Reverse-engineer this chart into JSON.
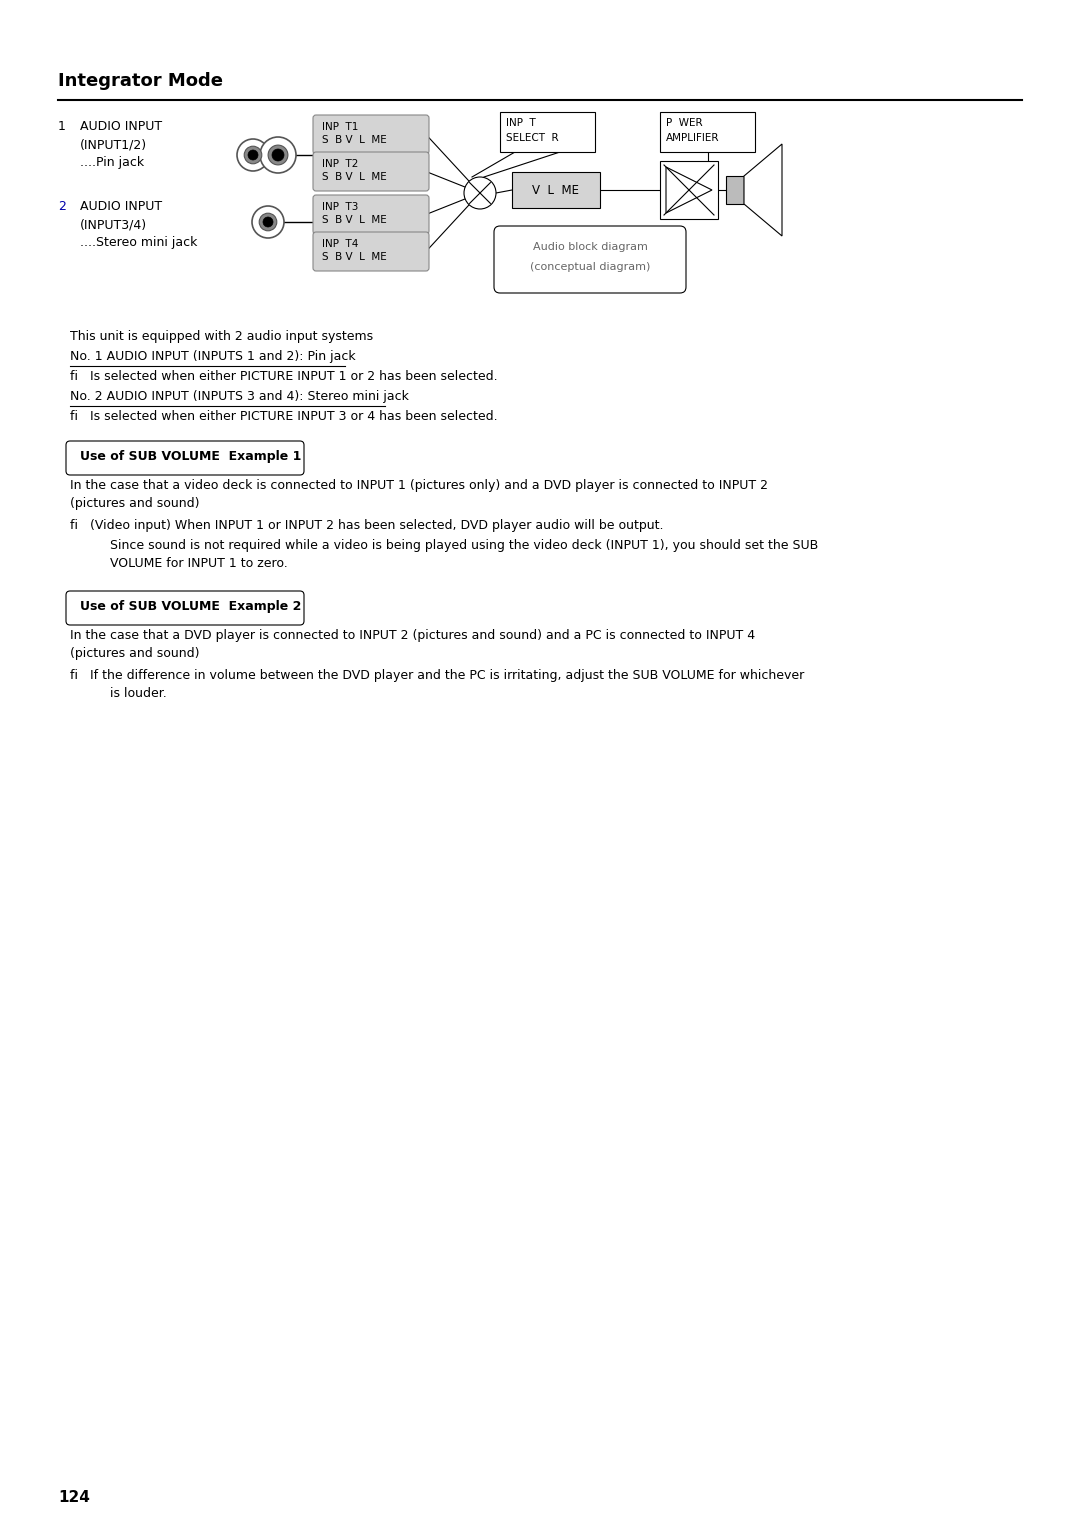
{
  "title": "Integrator Mode",
  "page_number": "124",
  "background_color": "#ffffff",
  "audio_input_1_num": "1",
  "audio_input_1_label": "AUDIO INPUT",
  "audio_input_1_sub1": "(INPUT1/2)",
  "audio_input_1_sub2": "....Pin jack",
  "audio_input_2_num": "2",
  "audio_input_2_label": "AUDIO INPUT",
  "audio_input_2_sub1": "(INPUT3/4)",
  "audio_input_2_sub2": "....Stereo mini jack",
  "inp_t1_line1": "INP  T1",
  "inp_t1_line2": "S  B V  L  ME",
  "inp_t2_line1": "INP  T2",
  "inp_t2_line2": "S  B V  L  ME",
  "inp_t3_line1": "INP  T3",
  "inp_t3_line2": "S  B V  L  ME",
  "inp_t4_line1": "INP  T4",
  "inp_t4_line2": "S  B V  L  ME",
  "inp_selector_line1": "INP  T",
  "inp_selector_line2": "SELECT  R",
  "volume_label": "V  L  ME",
  "power_amp_line1": "P  WER",
  "power_amp_line2": "AMPLIFIER",
  "block_diagram_line1": "Audio block diagram",
  "block_diagram_line2": "(conceptual diagram)",
  "body_text_1": "This unit is equipped with 2 audio input systems",
  "body_underline_1": "No. 1 AUDIO INPUT (INPUTS 1 and 2): Pin jack",
  "body_bullet_1": "fi   Is selected when either PICTURE INPUT 1 or 2 has been selected.",
  "body_underline_2": "No. 2 AUDIO INPUT (INPUTS 3 and 4): Stereo mini jack",
  "body_bullet_2": "fi   Is selected when either PICTURE INPUT 3 or 4 has been selected.",
  "example1_box_label": "Use of SUB VOLUME  Example 1",
  "example1_text1a": "In the case that a video deck is connected to INPUT 1 (pictures only) and a DVD player is connected to INPUT 2",
  "example1_text1b": "(pictures and sound)",
  "example1_bullet1": "fi   (Video input) When INPUT 1 or INPUT 2 has been selected, DVD player audio will be output.",
  "example1_indent1a": "Since sound is not required while a video is being played using the video deck (INPUT 1), you should set the SUB",
  "example1_indent1b": "VOLUME for INPUT 1 to zero.",
  "example2_box_label": "Use of SUB VOLUME  Example 2",
  "example2_text1a": "In the case that a DVD player is connected to INPUT 2 (pictures and sound) and a PC is connected to INPUT 4",
  "example2_text1b": "(pictures and sound)",
  "example2_bullet1a": "fi   If the difference in volume between the DVD player and the PC is irritating, adjust the SUB VOLUME for whichever",
  "example2_bullet1b": "is louder.",
  "block_gray": "#d4d4d4",
  "num2_color": "#0000aa"
}
